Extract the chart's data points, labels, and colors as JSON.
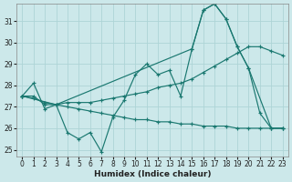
{
  "xlabel": "Humidex (Indice chaleur)",
  "bg_color": "#cce8ea",
  "grid_color": "#aed4d6",
  "line_color": "#1a7870",
  "xlim": [
    -0.5,
    23.5
  ],
  "ylim": [
    24.7,
    31.8
  ],
  "yticks": [
    25,
    26,
    27,
    28,
    29,
    30,
    31
  ],
  "xticks": [
    0,
    1,
    2,
    3,
    4,
    5,
    6,
    7,
    8,
    9,
    10,
    11,
    12,
    13,
    14,
    15,
    16,
    17,
    18,
    19,
    20,
    21,
    22,
    23
  ],
  "series": [
    {
      "x": [
        0,
        1,
        2,
        3,
        4,
        5,
        6,
        7,
        8,
        9,
        10,
        11,
        12,
        13,
        14,
        15,
        16,
        17,
        18,
        19,
        20,
        21,
        22,
        23
      ],
      "y": [
        27.5,
        28.1,
        26.9,
        27.1,
        25.8,
        25.5,
        25.8,
        24.9,
        26.5,
        27.3,
        28.5,
        29.0,
        28.5,
        28.7,
        27.5,
        29.7,
        31.5,
        31.8,
        31.1,
        29.8,
        28.8,
        26.7,
        26.0,
        26.0
      ]
    },
    {
      "x": [
        0,
        1,
        2,
        3,
        4,
        5,
        6,
        7,
        8,
        9,
        10,
        11,
        12,
        13,
        14,
        15,
        16,
        17,
        18,
        19,
        20,
        21,
        22,
        23
      ],
      "y": [
        27.5,
        27.5,
        27.1,
        27.1,
        27.2,
        27.2,
        27.2,
        27.3,
        27.4,
        27.5,
        27.6,
        27.7,
        27.9,
        28.0,
        28.1,
        28.3,
        28.6,
        28.9,
        29.2,
        29.5,
        29.8,
        29.8,
        29.6,
        29.4
      ]
    },
    {
      "x": [
        0,
        3,
        15,
        16,
        17,
        18,
        19,
        20,
        22,
        23
      ],
      "y": [
        27.5,
        27.1,
        29.7,
        31.5,
        31.8,
        31.1,
        29.8,
        28.8,
        26.0,
        26.0
      ]
    },
    {
      "x": [
        0,
        1,
        2,
        3,
        4,
        5,
        6,
        7,
        8,
        9,
        10,
        11,
        12,
        13,
        14,
        15,
        16,
        17,
        18,
        19,
        20,
        21,
        22,
        23
      ],
      "y": [
        27.5,
        27.4,
        27.2,
        27.1,
        27.0,
        26.9,
        26.8,
        26.7,
        26.6,
        26.5,
        26.4,
        26.4,
        26.3,
        26.3,
        26.2,
        26.2,
        26.1,
        26.1,
        26.1,
        26.0,
        26.0,
        26.0,
        26.0,
        26.0
      ]
    }
  ]
}
